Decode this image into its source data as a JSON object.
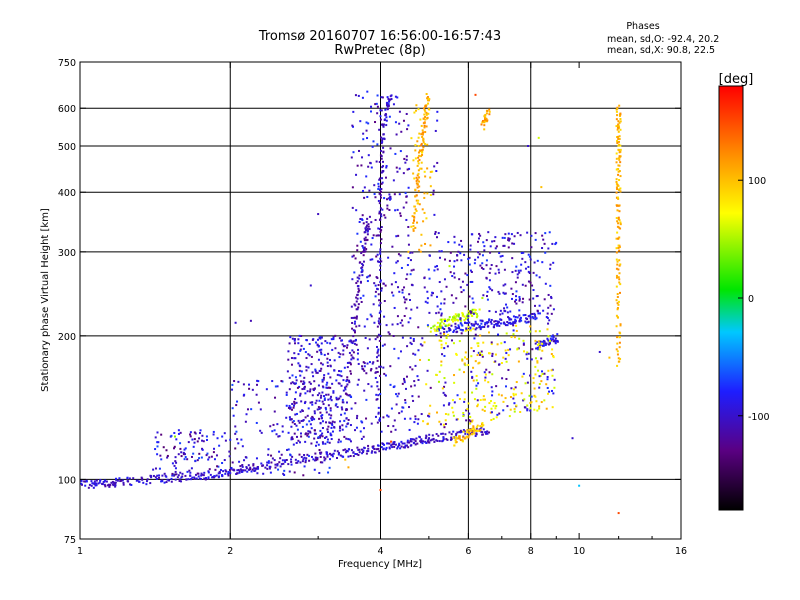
{
  "header": {
    "title_line1": "Tromsø 20160707 16:56:00-16:57:43",
    "title_line2": "RwPretec (8p)"
  },
  "stats": {
    "heading": "Phases",
    "line_o": "mean, sd,O: -92.4, 20.2",
    "line_x": "mean, sd,X:  90.8, 22.5"
  },
  "colorbar": {
    "unit_label": "[deg]",
    "ticks": [
      "100",
      "0",
      "-100"
    ],
    "tick_values": [
      100,
      0,
      -100
    ],
    "range": [
      -180,
      180
    ]
  },
  "chart_data": {
    "type": "scatter",
    "title": "Tromsø 20160707 16:56:00-16:57:43",
    "subtitle": "RwPretec (8p)",
    "xlabel": "Frequency [MHz]",
    "ylabel": "Stationary phase Virtual Height [km]",
    "x_scale": "log",
    "y_scale": "log",
    "xlim": [
      1,
      16
    ],
    "ylim": [
      75,
      750
    ],
    "x_ticks": [
      1,
      2,
      4,
      6,
      8,
      10,
      16
    ],
    "x_tick_labels": [
      "1",
      "2",
      "4",
      "6",
      "8",
      "10",
      "16"
    ],
    "y_ticks": [
      75,
      100,
      200,
      300,
      400,
      500,
      600,
      750
    ],
    "y_tick_labels": [
      "75",
      "100",
      "200",
      "300",
      "400",
      "500",
      "600",
      "750"
    ],
    "grid_x": [
      2,
      4,
      6,
      8
    ],
    "grid_y": [
      100,
      200,
      300,
      400,
      500,
      600
    ],
    "color_by": "phase [deg]",
    "colormap": [
      "#000000",
      "#5a0082",
      "#1e1eff",
      "#00c8ff",
      "#00e600",
      "#ffff00",
      "#ff8c00",
      "#ff0000"
    ],
    "traces": [
      {
        "x": [
          1.0,
          1.06,
          1.1,
          1.15,
          1.2,
          1.3,
          1.4,
          1.5,
          1.6,
          1.7,
          1.8,
          1.9,
          2.0,
          2.1,
          2.2,
          2.35,
          2.5,
          2.7,
          2.9,
          3.1,
          3.3,
          3.5,
          3.7,
          3.9,
          4.1,
          4.3,
          4.5,
          4.7,
          4.9,
          5.1,
          5.4,
          5.7,
          6.0,
          6.3,
          6.6
        ],
        "y": [
          98,
          97.5,
          98,
          98,
          99,
          99,
          100,
          100,
          101,
          102,
          102,
          103,
          104,
          105,
          106,
          107,
          108,
          110,
          111,
          112,
          113,
          114,
          115,
          116,
          117,
          118,
          119,
          120,
          121,
          122,
          123,
          124,
          125,
          126,
          127
        ],
        "phase": -100
      },
      {
        "x": [
          3.4,
          3.5,
          3.55,
          3.6,
          3.65,
          3.7,
          3.75,
          3.8
        ],
        "y": [
          150,
          180,
          210,
          240,
          270,
          300,
          330,
          350
        ],
        "phase": -110
      },
      {
        "x": [
          3.95,
          3.96,
          3.97,
          3.98,
          3.99,
          4.0,
          4.02,
          4.05,
          4.1,
          4.2
        ],
        "y": [
          130,
          170,
          220,
          280,
          340,
          400,
          460,
          530,
          600,
          640
        ],
        "phase": -105
      },
      {
        "x": [
          4.65,
          4.7,
          4.75,
          4.8,
          4.85,
          4.9,
          4.95,
          5.0
        ],
        "y": [
          330,
          380,
          420,
          470,
          520,
          560,
          600,
          640
        ],
        "phase": 110
      },
      {
        "x": [
          5.2,
          5.5,
          5.8,
          6.1,
          6.4,
          6.7,
          7.0,
          7.3,
          7.6,
          8.0,
          8.3
        ],
        "y": [
          205,
          207,
          209,
          210,
          211,
          212,
          214,
          215,
          216,
          218,
          222
        ],
        "phase": -90
      },
      {
        "x": [
          5.1,
          5.3,
          5.5,
          5.7,
          5.9,
          6.1,
          6.3
        ],
        "y": [
          208,
          212,
          215,
          218,
          220,
          222,
          224
        ],
        "phase": 55
      },
      {
        "x": [
          5.6,
          5.8,
          6.0,
          6.2,
          6.4
        ],
        "y": [
          120,
          122,
          125,
          127,
          130
        ],
        "phase": 100
      },
      {
        "x": [
          6.4,
          6.5,
          6.6
        ],
        "y": [
          550,
          570,
          590
        ],
        "phase": 110
      },
      {
        "x": [
          12.0,
          12.0,
          12.0,
          12.0,
          12.0,
          12.0,
          12.0,
          12.0,
          12.0,
          12.0,
          12.0,
          12.0
        ],
        "y": [
          600,
          560,
          520,
          480,
          440,
          400,
          360,
          320,
          280,
          240,
          200,
          170
        ],
        "phase": 105
      },
      {
        "x": [
          8.2,
          8.5,
          8.8,
          9.1
        ],
        "y": [
          190,
          192,
          196,
          198
        ],
        "phase": -95
      }
    ],
    "points": [
      {
        "x": 1.55,
        "y": 123,
        "phase": 40
      },
      {
        "x": 1.95,
        "y": 125,
        "phase": -95
      },
      {
        "x": 2.05,
        "y": 213,
        "phase": -100
      },
      {
        "x": 2.2,
        "y": 215,
        "phase": -110
      },
      {
        "x": 2.9,
        "y": 255,
        "phase": -100
      },
      {
        "x": 3.0,
        "y": 360,
        "phase": -105
      },
      {
        "x": 3.4,
        "y": 110,
        "phase": 100
      },
      {
        "x": 3.45,
        "y": 106,
        "phase": 110
      },
      {
        "x": 4.0,
        "y": 95,
        "phase": 150
      },
      {
        "x": 4.55,
        "y": 300,
        "phase": 100
      },
      {
        "x": 5.5,
        "y": 280,
        "phase": 55
      },
      {
        "x": 6.2,
        "y": 640,
        "phase": 150
      },
      {
        "x": 6.3,
        "y": 320,
        "phase": -100
      },
      {
        "x": 6.4,
        "y": 240,
        "phase": 50
      },
      {
        "x": 6.8,
        "y": 270,
        "phase": -95
      },
      {
        "x": 7.0,
        "y": 150,
        "phase": 110
      },
      {
        "x": 7.5,
        "y": 160,
        "phase": 100
      },
      {
        "x": 7.9,
        "y": 500,
        "phase": -100
      },
      {
        "x": 8.3,
        "y": 520,
        "phase": 60
      },
      {
        "x": 8.4,
        "y": 410,
        "phase": 100
      },
      {
        "x": 8.8,
        "y": 240,
        "phase": -100
      },
      {
        "x": 9.7,
        "y": 122,
        "phase": -100
      },
      {
        "x": 10.0,
        "y": 97,
        "phase": -30
      },
      {
        "x": 11.0,
        "y": 185,
        "phase": -100
      },
      {
        "x": 11.5,
        "y": 180,
        "phase": 100
      },
      {
        "x": 12.0,
        "y": 85,
        "phase": 150
      },
      {
        "x": 11.9,
        "y": 470,
        "phase": 100
      },
      {
        "x": 4.2,
        "y": 120,
        "phase": 150
      },
      {
        "x": 5.9,
        "y": 175,
        "phase": 100
      },
      {
        "x": 4.8,
        "y": 178,
        "phase": 100
      },
      {
        "x": 5.0,
        "y": 178,
        "phase": 50
      }
    ],
    "scatter_cloud": "dense scatter of echoes between 1 and 9 MHz, 100–650 km"
  }
}
